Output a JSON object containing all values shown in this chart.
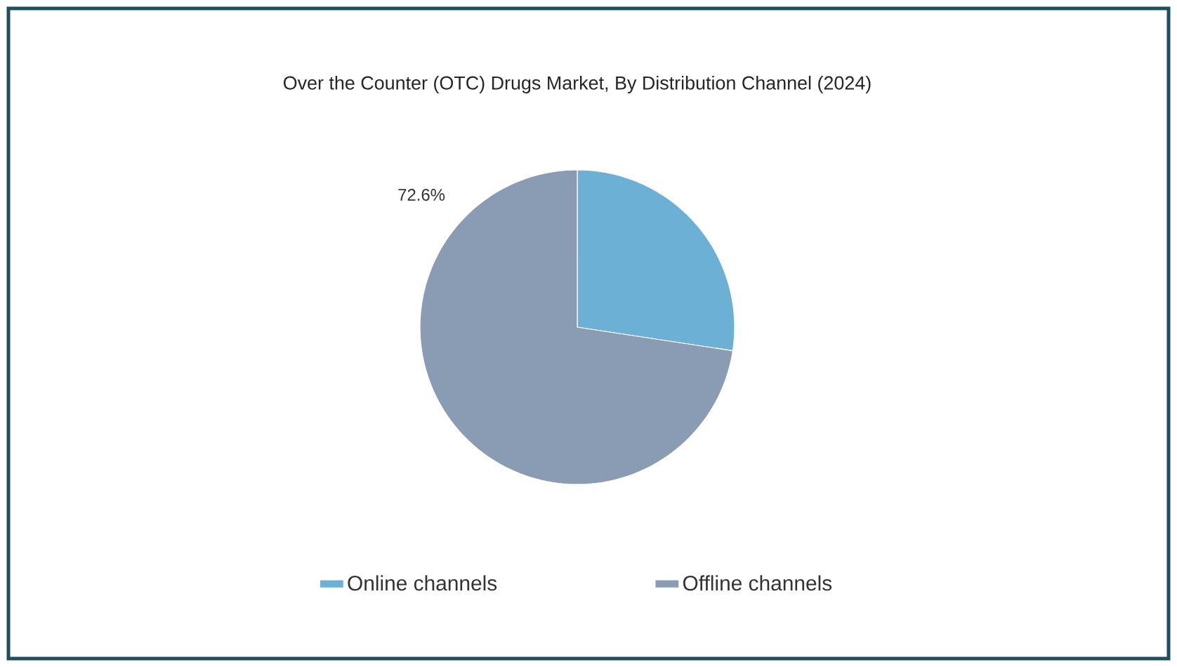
{
  "chart_data": {
    "type": "pie",
    "title": "Over the Counter (OTC) Drugs Market, By Distribution Channel (2024)",
    "categories": [
      "Online channels",
      "Offline channels"
    ],
    "values": [
      27.4,
      72.6
    ],
    "colors": [
      "#6cb0d5",
      "#8a9bb4"
    ],
    "value_labels": [
      null,
      "72.6%"
    ],
    "legend": "bottom"
  }
}
